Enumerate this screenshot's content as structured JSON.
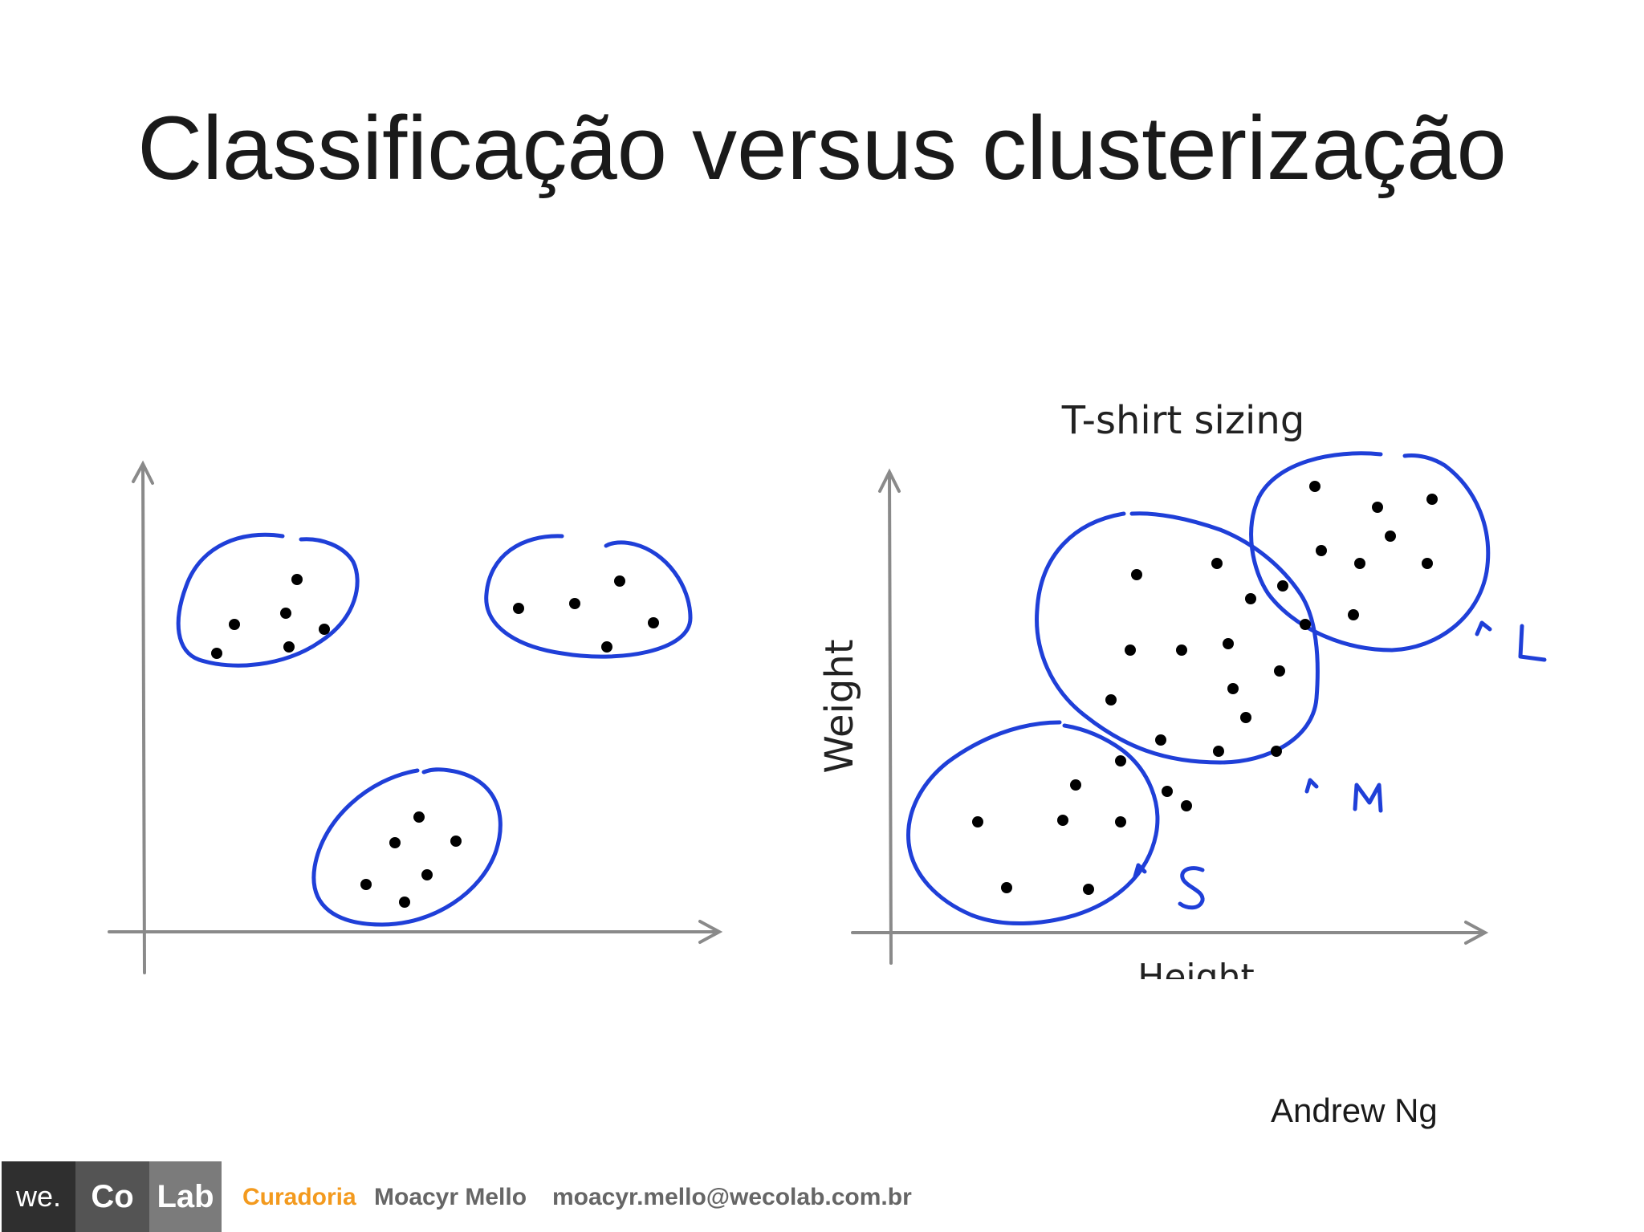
{
  "slide": {
    "title": "Classificação versus clusterização",
    "credit": "Andrew Ng"
  },
  "left_plot": {
    "clusters": [
      {
        "points": 6
      },
      {
        "points": 5
      },
      {
        "points": 6
      }
    ]
  },
  "right_plot": {
    "title": "T-shirt sizing",
    "xlabel": "Height",
    "ylabel": "Weight",
    "cluster_labels": [
      "L",
      "M",
      "S"
    ]
  },
  "footer": {
    "logo_we": "we.",
    "logo_co": "Co",
    "logo_lab": "Lab",
    "curadoria": "Curadoria",
    "name": "Moacyr Mello",
    "email": "moacyr.mello@wecolab.com.br"
  },
  "colors": {
    "ink": "#1f3fd8",
    "axis": "#8a8a8a",
    "accent": "#f39a1e"
  }
}
